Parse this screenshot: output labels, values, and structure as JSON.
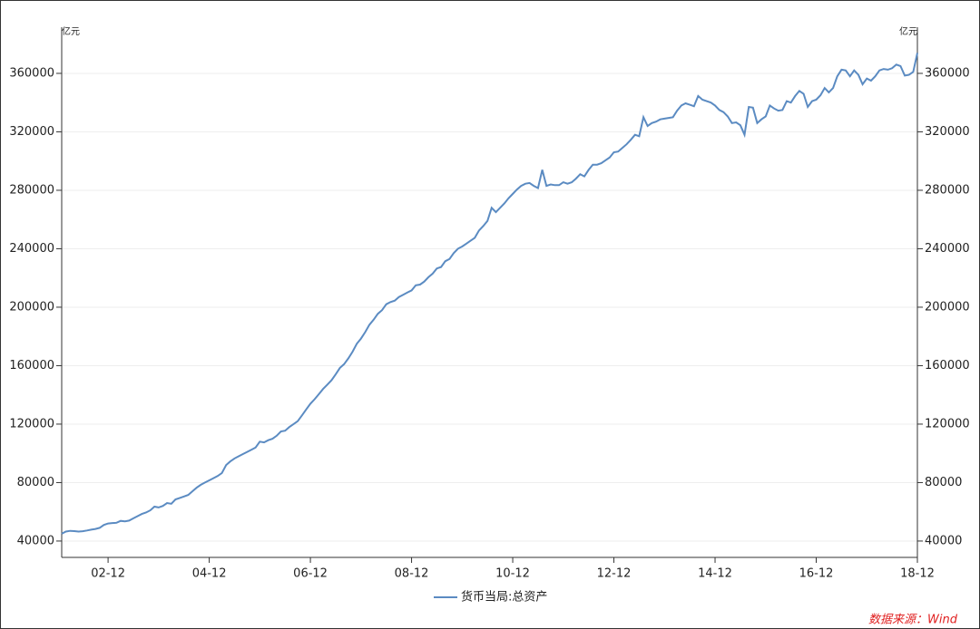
{
  "chart_data": {
    "type": "line",
    "y_unit": "亿元",
    "y2_unit": "亿元",
    "source": "数据来源：Wind",
    "legend": "bottom",
    "grid": true,
    "x": [
      "02-01",
      "02-02",
      "02-03",
      "02-04",
      "02-05",
      "02-06",
      "02-07",
      "02-08",
      "02-09",
      "02-10",
      "02-11",
      "02-12",
      "03-01",
      "03-02",
      "03-03",
      "03-04",
      "03-05",
      "03-06",
      "03-07",
      "03-08",
      "03-09",
      "03-10",
      "03-11",
      "03-12",
      "04-01",
      "04-02",
      "04-03",
      "04-04",
      "04-05",
      "04-06",
      "04-07",
      "04-08",
      "04-09",
      "04-10",
      "04-11",
      "04-12",
      "05-01",
      "05-02",
      "05-03",
      "05-04",
      "05-05",
      "05-06",
      "05-07",
      "05-08",
      "05-09",
      "05-10",
      "05-11",
      "05-12",
      "06-01",
      "06-02",
      "06-03",
      "06-04",
      "06-05",
      "06-06",
      "06-07",
      "06-08",
      "06-09",
      "06-10",
      "06-11",
      "06-12",
      "07-01",
      "07-02",
      "07-03",
      "07-04",
      "07-05",
      "07-06",
      "07-07",
      "07-08",
      "07-09",
      "07-10",
      "07-11",
      "07-12",
      "08-01",
      "08-02",
      "08-03",
      "08-04",
      "08-05",
      "08-06",
      "08-07",
      "08-08",
      "08-09",
      "08-10",
      "08-11",
      "08-12",
      "09-01",
      "09-02",
      "09-03",
      "09-04",
      "09-05",
      "09-06",
      "09-07",
      "09-08",
      "09-09",
      "09-10",
      "09-11",
      "09-12",
      "10-01",
      "10-02",
      "10-03",
      "10-04",
      "10-05",
      "10-06",
      "10-07",
      "10-08",
      "10-09",
      "10-10",
      "10-11",
      "10-12",
      "11-01",
      "11-02",
      "11-03",
      "11-04",
      "11-05",
      "11-06",
      "11-07",
      "11-08",
      "11-09",
      "11-10",
      "11-11",
      "11-12",
      "12-01",
      "12-02",
      "12-03",
      "12-04",
      "12-05",
      "12-06",
      "12-07",
      "12-08",
      "12-09",
      "12-10",
      "12-11",
      "12-12",
      "13-01",
      "13-02",
      "13-03",
      "13-04",
      "13-05",
      "13-06",
      "13-07",
      "13-08",
      "13-09",
      "13-10",
      "13-11",
      "13-12",
      "14-01",
      "14-02",
      "14-03",
      "14-04",
      "14-05",
      "14-06",
      "14-07",
      "14-08",
      "14-09",
      "14-10",
      "14-11",
      "14-12",
      "15-01",
      "15-02",
      "15-03",
      "15-04",
      "15-05",
      "15-06",
      "15-07",
      "15-08",
      "15-09",
      "15-10",
      "15-11",
      "15-12",
      "16-01",
      "16-02",
      "16-03",
      "16-04",
      "16-05",
      "16-06",
      "16-07",
      "16-08",
      "16-09",
      "16-10",
      "16-11",
      "16-12",
      "17-01",
      "17-02",
      "17-03",
      "17-04",
      "17-05",
      "17-06",
      "17-07",
      "17-08",
      "17-09",
      "17-10",
      "17-11",
      "17-12",
      "18-01",
      "18-02",
      "18-03",
      "18-04",
      "18-05",
      "18-06",
      "18-07",
      "18-08",
      "18-09",
      "18-10",
      "18-11",
      "18-12"
    ],
    "series": [
      {
        "name": "货币当局:总资产",
        "color": "#5b8bc2",
        "values": [
          45000,
          46500,
          47000,
          46800,
          46500,
          46700,
          47200,
          47800,
          48300,
          49000,
          51000,
          52000,
          52300,
          52500,
          53800,
          53500,
          54000,
          55500,
          57000,
          58500,
          59500,
          61000,
          63500,
          63000,
          64000,
          66000,
          65500,
          68500,
          69500,
          70500,
          71500,
          74000,
          76500,
          78500,
          80000,
          81500,
          83000,
          84500,
          86500,
          92000,
          94500,
          96500,
          98000,
          99500,
          101000,
          102500,
          104000,
          108000,
          107500,
          109000,
          110000,
          112000,
          115000,
          115500,
          118000,
          120000,
          122000,
          126000,
          130000,
          134000,
          137000,
          140500,
          144000,
          147000,
          150000,
          154000,
          158500,
          161000,
          165000,
          169500,
          175000,
          178500,
          183000,
          188000,
          191500,
          195500,
          198000,
          202000,
          203500,
          204500,
          207000,
          208500,
          210000,
          211500,
          215000,
          215500,
          217500,
          220500,
          223000,
          226500,
          227500,
          231500,
          233000,
          237000,
          240000,
          241500,
          243500,
          245500,
          247500,
          252500,
          255500,
          259000,
          268000,
          265000,
          268000,
          271000,
          274500,
          277500,
          280500,
          283000,
          284500,
          285000,
          283000,
          281500,
          294000,
          283000,
          284000,
          283500,
          283500,
          285500,
          284500,
          285500,
          288000,
          291000,
          289500,
          294000,
          297500,
          297500,
          298500,
          300500,
          302500,
          306000,
          306500,
          309000,
          311500,
          314500,
          318000,
          317000,
          330000,
          324000,
          326000,
          327000,
          328500,
          329000,
          329500,
          330000,
          334500,
          338000,
          339500,
          338500,
          337500,
          344500,
          342000,
          341000,
          340000,
          338000,
          335000,
          333500,
          330500,
          326000,
          326500,
          324500,
          318000,
          337000,
          336500,
          326000,
          328500,
          330500,
          338000,
          336000,
          334500,
          335000,
          341000,
          340000,
          344500,
          348000,
          346000,
          337000,
          341000,
          342000,
          345000,
          350000,
          347000,
          350000,
          358000,
          362500,
          362000,
          358000,
          362000,
          359000,
          352500,
          356500,
          355000,
          358000,
          362000,
          363000,
          362500,
          363500,
          366000,
          365000,
          358500,
          359000,
          361000,
          374000
        ]
      }
    ],
    "xticks": [
      "02-12",
      "04-12",
      "06-12",
      "08-12",
      "10-12",
      "12-12",
      "14-12",
      "16-12",
      "18-12"
    ],
    "ylim": [
      28800,
      391600
    ],
    "yticks": [
      40000,
      80000,
      120000,
      160000,
      200000,
      240000,
      280000,
      320000,
      360000
    ],
    "y2lim": [
      28800,
      391600
    ],
    "y2ticks": [
      40000,
      80000,
      120000,
      160000,
      200000,
      240000,
      280000,
      320000,
      360000
    ]
  }
}
